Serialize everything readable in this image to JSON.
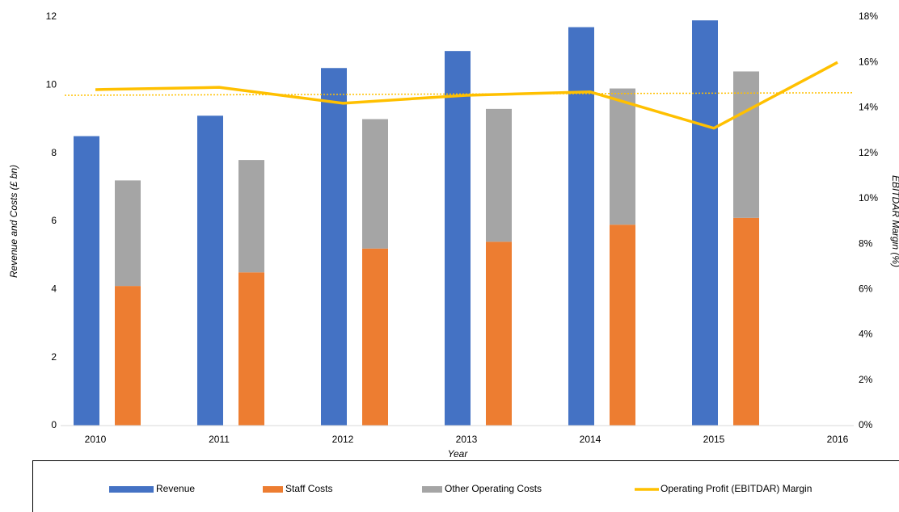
{
  "chart_data": {
    "type": "bar-line",
    "categories": [
      "2010",
      "2011",
      "2012",
      "2013",
      "2014",
      "2015",
      "2016"
    ],
    "series": [
      {
        "name": "Revenue",
        "color": "#4472c4",
        "type": "bar",
        "values": [
          8.5,
          9.1,
          10.5,
          11.0,
          11.7,
          11.9,
          null
        ]
      },
      {
        "name": "Staff Costs",
        "color": "#ed7d31",
        "type": "stack",
        "values": [
          4.1,
          4.5,
          5.2,
          5.4,
          5.9,
          6.1,
          null
        ]
      },
      {
        "name": "Other Operating Costs",
        "color": "#a5a5a5",
        "type": "stack",
        "values": [
          3.1,
          3.3,
          3.8,
          3.9,
          4.0,
          4.3,
          null
        ]
      },
      {
        "name": "Operating Profit (EBITDAR) Margin",
        "color": "#ffc000",
        "type": "line",
        "axis": "y2",
        "trendline": true,
        "values": [
          14.8,
          14.9,
          14.2,
          14.55,
          14.7,
          13.1,
          16.0
        ]
      }
    ],
    "xlabel": "Year",
    "ylabel": "Revenue and Costs (£ bn)",
    "y2label": "EBITDAR Margin (%)",
    "ylim": [
      0,
      12
    ],
    "yticks": [
      0,
      2,
      4,
      6,
      8,
      10,
      12
    ],
    "y2lim": [
      0,
      18
    ],
    "y2ticks": [
      {
        "value": 0,
        "label": "0%"
      },
      {
        "value": 2,
        "label": "2%"
      },
      {
        "value": 4,
        "label": "4%"
      },
      {
        "value": 6,
        "label": "6%"
      },
      {
        "value": 8,
        "label": "8%"
      },
      {
        "value": 10,
        "label": "10%"
      },
      {
        "value": 12,
        "label": "12%"
      },
      {
        "value": 14,
        "label": "14%"
      },
      {
        "value": 16,
        "label": "16%"
      },
      {
        "value": 18,
        "label": "18%"
      }
    ],
    "legend": "bottom"
  }
}
